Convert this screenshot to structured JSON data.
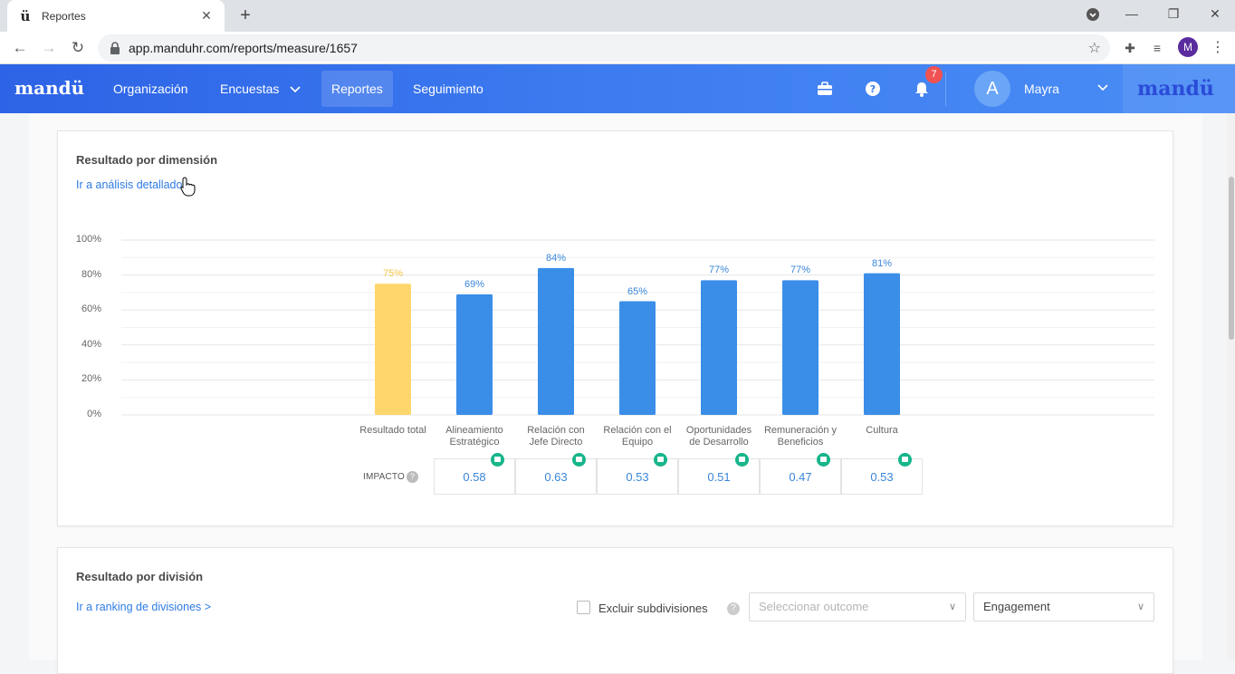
{
  "browser": {
    "tab_title": "Reportes",
    "tab_favicon": "ü",
    "url": "app.manduhr.com/reports/measure/1657",
    "profile_initial": "M"
  },
  "nav": {
    "brand": "mandü",
    "items": [
      "Organización",
      "Encuestas",
      "Reportes",
      "Seguimiento"
    ],
    "active": "Reportes",
    "notifications": "7",
    "user_initial": "A",
    "user_name": "Mayra",
    "brand_right": "mandü"
  },
  "dimension_card": {
    "title": "Resultado por dimensión",
    "link": "Ir a análisis detallado",
    "impact_label": "IMPACTO",
    "impact_help": "?"
  },
  "chart_data": {
    "type": "bar",
    "title": "",
    "ylim": [
      0,
      100
    ],
    "yticks": [
      "0%",
      "20%",
      "40%",
      "60%",
      "80%",
      "100%"
    ],
    "categories": [
      "Resultado total",
      "Alineamiento Estratégico",
      "Relación con Jefe Directo",
      "Relación con el Equipo",
      "Oportunidades de Desarrollo",
      "Remuneración y Beneficios",
      "Cultura"
    ],
    "category_lines": [
      [
        "Resultado total"
      ],
      [
        "Alineamiento",
        "Estratégico"
      ],
      [
        "Relación con",
        "Jefe Directo"
      ],
      [
        "Relación con el",
        "Equipo"
      ],
      [
        "Oportunidades",
        "de Desarrollo"
      ],
      [
        "Remuneración y",
        "Beneficios"
      ],
      [
        "Cultura"
      ]
    ],
    "values": [
      75,
      69,
      84,
      65,
      77,
      77,
      81
    ],
    "value_labels": [
      "75%",
      "69%",
      "84%",
      "65%",
      "77%",
      "77%",
      "81%"
    ],
    "colors": [
      "#ffd66b",
      "#3a8ee8",
      "#3a8ee8",
      "#3a8ee8",
      "#3a8ee8",
      "#3a8ee8",
      "#3a8ee8"
    ],
    "label_colors": [
      "#f5c445",
      "#3a86d9",
      "#3a86d9",
      "#3a86d9",
      "#3a86d9",
      "#3a86d9",
      "#3a86d9"
    ],
    "impact": [
      "0.58",
      "0.63",
      "0.53",
      "0.51",
      "0.47",
      "0.53"
    ],
    "grid": true
  },
  "division_card": {
    "title": "Resultado por división",
    "link": "Ir a ranking de divisiones >",
    "exclude_label": "Excluir subdivisiones",
    "help": "?",
    "outcome_placeholder": "Seleccionar outcome",
    "metric_value": "Engagement"
  }
}
